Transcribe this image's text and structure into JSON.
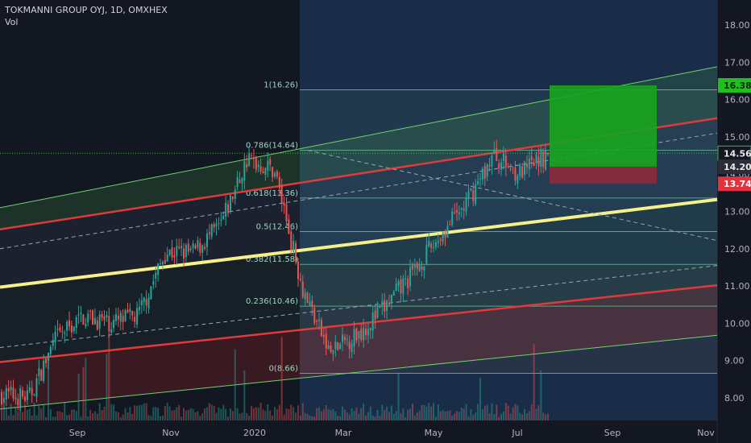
{
  "header": {
    "title": "TOKMANNI GROUP OYJ, 1D, OMXHEX",
    "volume_label": "Vol"
  },
  "colors": {
    "background": "#131722",
    "up": "#26a69a",
    "down": "#ef5350",
    "regression_mid": "#f5f089",
    "regression_inner": "#e03a3a",
    "regression_outer": "#6fd36f",
    "target_zone": "#18a51f",
    "stop_zone": "#8c2a3a",
    "fib_line": "#6fd6a8",
    "price_current_bg": "#131722",
    "price_target_bg": "#1fbf1f",
    "price_stop_bg": "#e2323d"
  },
  "price_axis": {
    "ticks": [
      "18.00",
      "17.00",
      "16.00",
      "15.00",
      "14.00",
      "13.00",
      "12.00",
      "11.00",
      "10.00",
      "9.00",
      "8.00"
    ],
    "labels": [
      {
        "text": "16.38",
        "value": 16.38,
        "kind": "target"
      },
      {
        "text": "14.56",
        "value": 14.56,
        "kind": "current"
      },
      {
        "text": "14.20",
        "value": 14.2,
        "kind": "entry"
      },
      {
        "text": "13.74",
        "value": 13.74,
        "kind": "stop"
      }
    ]
  },
  "time_axis": {
    "ticks": [
      "Sep",
      "Nov",
      "2020",
      "Mar",
      "May",
      "Jul",
      "Sep",
      "Nov"
    ]
  },
  "chart_data": {
    "type": "candlestick",
    "title": "TOKMANNI GROUP OYJ, 1D, OMXHEX",
    "ylim": [
      7.5,
      18.5
    ],
    "x_axis": [
      "Sep",
      "Nov",
      "2020",
      "Mar",
      "May",
      "Jul",
      "Sep",
      "Nov"
    ],
    "fib_levels": [
      {
        "label": "1(16.26)",
        "value": 16.26
      },
      {
        "label": "0.786(14.64)",
        "value": 14.64
      },
      {
        "label": "0.618(13.36)",
        "value": 13.36
      },
      {
        "label": "0.5(12.46)",
        "value": 12.46
      },
      {
        "label": "0.382(11.58)",
        "value": 11.58
      },
      {
        "label": "0.236(10.46)",
        "value": 10.46
      },
      {
        "label": "0(8.66)",
        "value": 8.66
      }
    ],
    "position": {
      "target": 16.38,
      "entry": 14.2,
      "stop": 13.74
    },
    "last_price": 14.56,
    "price_path": [
      {
        "t": "Aug",
        "v": 8.1
      },
      {
        "t": "Aug",
        "v": 8.0
      },
      {
        "t": "Aug",
        "v": 9.6
      },
      {
        "t": "Sep",
        "v": 10.2
      },
      {
        "t": "Oct",
        "v": 10.0
      },
      {
        "t": "Oct",
        "v": 10.2
      },
      {
        "t": "Nov",
        "v": 11.9
      },
      {
        "t": "Dec",
        "v": 11.9
      },
      {
        "t": "2020",
        "v": 12.6
      },
      {
        "t": "Feb",
        "v": 14.4
      },
      {
        "t": "Feb",
        "v": 14.1
      },
      {
        "t": "Mar",
        "v": 11.0
      },
      {
        "t": "Mar",
        "v": 9.2
      },
      {
        "t": "Apr",
        "v": 9.7
      },
      {
        "t": "Apr",
        "v": 10.4
      },
      {
        "t": "May",
        "v": 11.3
      },
      {
        "t": "May",
        "v": 12.3
      },
      {
        "t": "Jun",
        "v": 13.2
      },
      {
        "t": "Jul",
        "v": 14.5
      },
      {
        "t": "Jul",
        "v": 14.0
      },
      {
        "t": "Jul",
        "v": 14.56
      }
    ]
  }
}
